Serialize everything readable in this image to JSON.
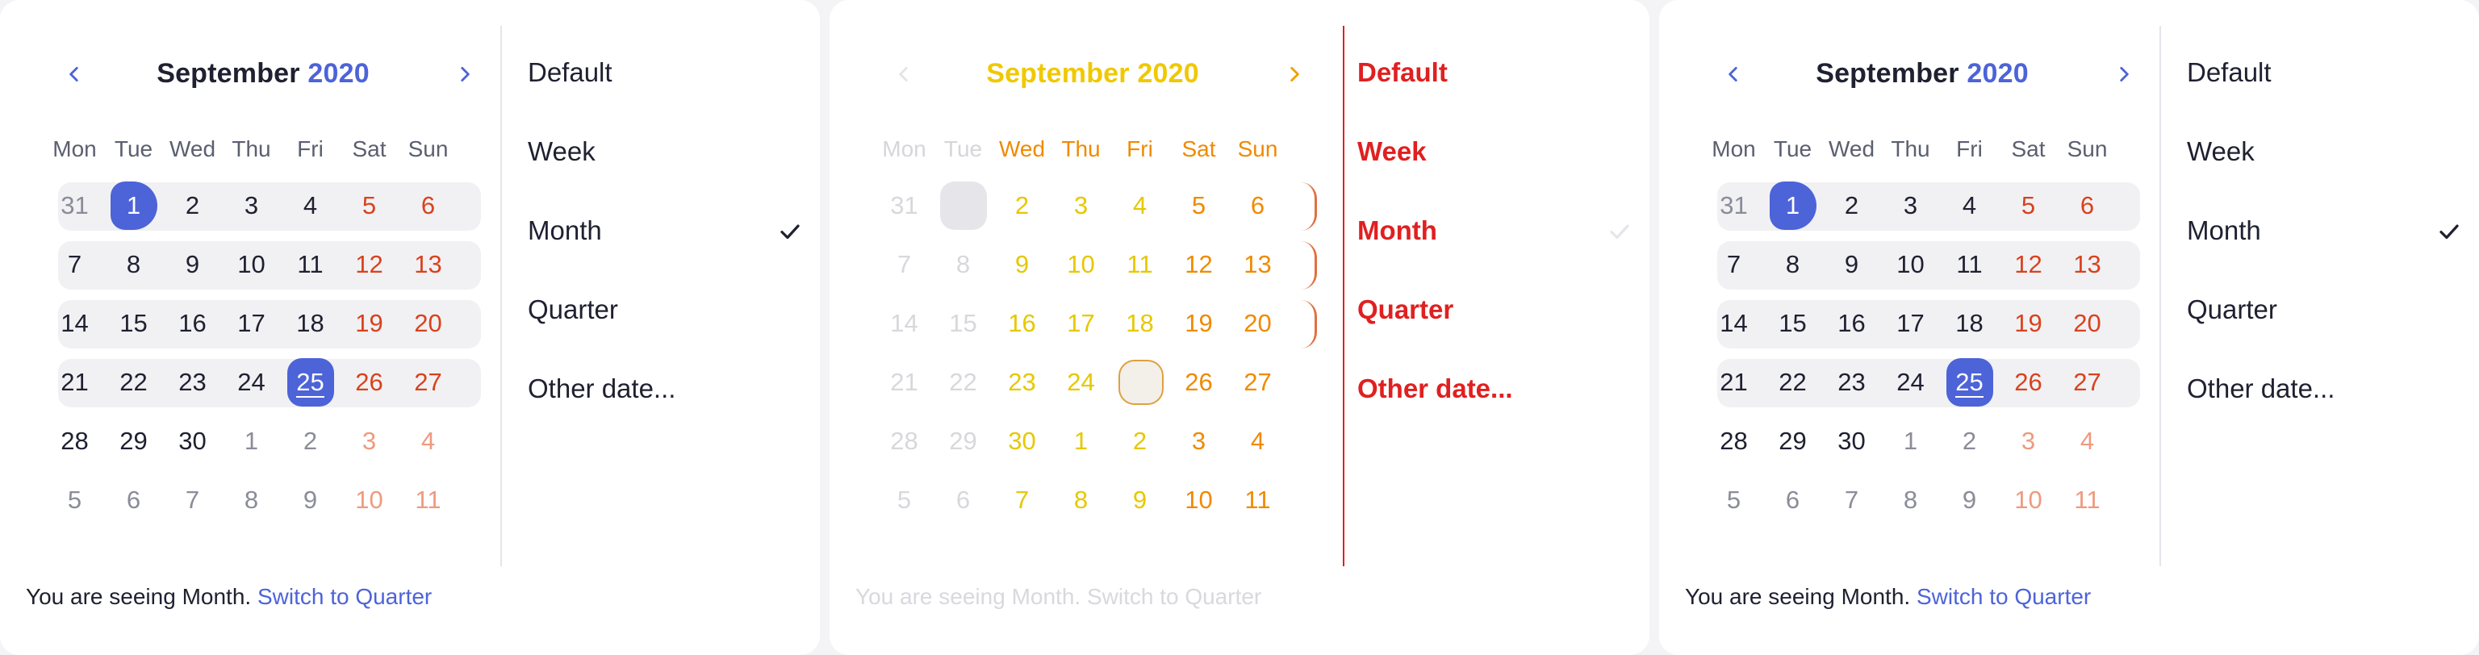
{
  "calendar": {
    "month": "September",
    "year": "2020",
    "weekdays": [
      "Mon",
      "Tue",
      "Wed",
      "Thu",
      "Fri",
      "Sat",
      "Sun"
    ],
    "weeks": [
      [
        "31",
        "1",
        "2",
        "3",
        "4",
        "5",
        "6"
      ],
      [
        "7",
        "8",
        "9",
        "10",
        "11",
        "12",
        "13"
      ],
      [
        "14",
        "15",
        "16",
        "17",
        "18",
        "19",
        "20"
      ],
      [
        "21",
        "22",
        "23",
        "24",
        "25",
        "26",
        "27"
      ],
      [
        "28",
        "29",
        "30",
        "1",
        "2",
        "3",
        "4"
      ],
      [
        "5",
        "6",
        "7",
        "8",
        "9",
        "10",
        "11"
      ]
    ],
    "selected_day": "1",
    "today": "25"
  },
  "menu": {
    "items": [
      "Default",
      "Week",
      "Month",
      "Quarter",
      "Other date..."
    ],
    "checked": "Month"
  },
  "footer": {
    "status": "You are seeing Month.",
    "link": "Switch to Quarter"
  },
  "colors": {
    "accent": "#4d63d8",
    "weekend": "#d9421c"
  },
  "icons": {
    "prev": "chevron-left-icon",
    "next": "chevron-right-icon",
    "check": "checkmark-icon"
  }
}
